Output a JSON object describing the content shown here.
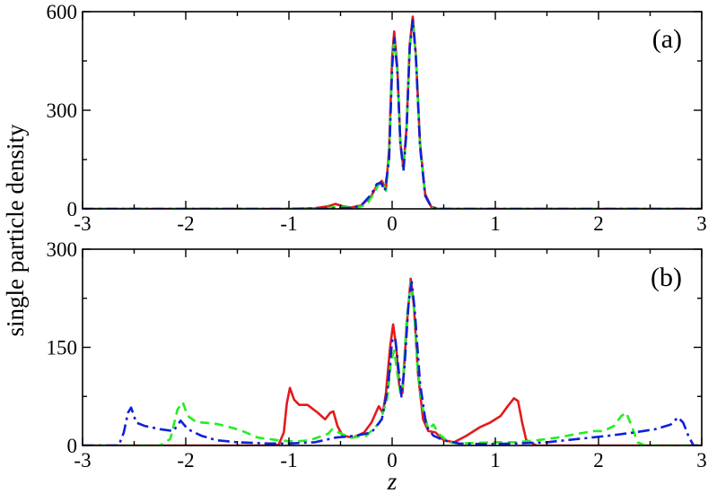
{
  "ylabel": "single particle density",
  "xlabel": "z",
  "colors": {
    "red": "#e31a1c",
    "green": "#22ee22",
    "blue": "#1020d8"
  },
  "chart_data": [
    {
      "type": "line",
      "panel_label": "(a)",
      "xlim": [
        -3,
        3
      ],
      "ylim": [
        0,
        600
      ],
      "xticks": [
        -3,
        -2,
        -1,
        0,
        1,
        2,
        3
      ],
      "yticks": [
        0,
        300,
        600
      ],
      "series": [
        {
          "color": "red",
          "style": "solid",
          "points": [
            [
              -3,
              0
            ],
            [
              -1.0,
              0
            ],
            [
              -0.75,
              2
            ],
            [
              -0.62,
              8
            ],
            [
              -0.55,
              15
            ],
            [
              -0.48,
              8
            ],
            [
              -0.4,
              4
            ],
            [
              -0.3,
              10
            ],
            [
              -0.2,
              40
            ],
            [
              -0.15,
              70
            ],
            [
              -0.1,
              85
            ],
            [
              -0.06,
              60
            ],
            [
              -0.03,
              180
            ],
            [
              0.0,
              460
            ],
            [
              0.02,
              540
            ],
            [
              0.05,
              430
            ],
            [
              0.08,
              200
            ],
            [
              0.11,
              125
            ],
            [
              0.14,
              250
            ],
            [
              0.17,
              500
            ],
            [
              0.2,
              585
            ],
            [
              0.23,
              470
            ],
            [
              0.27,
              200
            ],
            [
              0.32,
              45
            ],
            [
              0.38,
              6
            ],
            [
              0.45,
              0
            ],
            [
              3,
              0
            ]
          ]
        },
        {
          "color": "green",
          "style": "dashed",
          "points": [
            [
              -3,
              0
            ],
            [
              -1.0,
              0
            ],
            [
              -0.7,
              1
            ],
            [
              -0.55,
              5
            ],
            [
              -0.45,
              5
            ],
            [
              -0.35,
              3
            ],
            [
              -0.25,
              12
            ],
            [
              -0.18,
              45
            ],
            [
              -0.13,
              75
            ],
            [
              -0.09,
              80
            ],
            [
              -0.06,
              55
            ],
            [
              -0.03,
              160
            ],
            [
              0.0,
              440
            ],
            [
              0.02,
              520
            ],
            [
              0.05,
              420
            ],
            [
              0.08,
              200
            ],
            [
              0.11,
              120
            ],
            [
              0.14,
              240
            ],
            [
              0.17,
              490
            ],
            [
              0.2,
              575
            ],
            [
              0.23,
              470
            ],
            [
              0.27,
              190
            ],
            [
              0.32,
              40
            ],
            [
              0.38,
              5
            ],
            [
              0.45,
              0
            ],
            [
              3,
              0
            ]
          ]
        },
        {
          "color": "blue",
          "style": "dashdot",
          "points": [
            [
              -3,
              0
            ],
            [
              -1.0,
              0
            ],
            [
              -0.6,
              1
            ],
            [
              -0.4,
              3
            ],
            [
              -0.3,
              10
            ],
            [
              -0.2,
              45
            ],
            [
              -0.15,
              75
            ],
            [
              -0.11,
              80
            ],
            [
              -0.07,
              55
            ],
            [
              -0.03,
              150
            ],
            [
              0.0,
              430
            ],
            [
              0.02,
              520
            ],
            [
              0.05,
              420
            ],
            [
              0.08,
              200
            ],
            [
              0.11,
              115
            ],
            [
              0.14,
              240
            ],
            [
              0.17,
              490
            ],
            [
              0.2,
              575
            ],
            [
              0.23,
              465
            ],
            [
              0.27,
              190
            ],
            [
              0.32,
              40
            ],
            [
              0.38,
              5
            ],
            [
              0.45,
              0
            ],
            [
              3,
              0
            ]
          ]
        }
      ]
    },
    {
      "type": "line",
      "panel_label": "(b)",
      "xlim": [
        -3,
        3
      ],
      "ylim": [
        0,
        300
      ],
      "xticks": [
        -3,
        -2,
        -1,
        0,
        1,
        2,
        3
      ],
      "yticks": [
        0,
        150,
        300
      ],
      "series": [
        {
          "color": "red",
          "style": "solid",
          "points": [
            [
              -3,
              0
            ],
            [
              -1.2,
              0
            ],
            [
              -1.1,
              1
            ],
            [
              -1.05,
              20
            ],
            [
              -1.02,
              65
            ],
            [
              -0.99,
              88
            ],
            [
              -0.95,
              70
            ],
            [
              -0.9,
              62
            ],
            [
              -0.82,
              62
            ],
            [
              -0.72,
              50
            ],
            [
              -0.65,
              40
            ],
            [
              -0.6,
              50
            ],
            [
              -0.57,
              52
            ],
            [
              -0.53,
              30
            ],
            [
              -0.48,
              15
            ],
            [
              -0.38,
              12
            ],
            [
              -0.27,
              20
            ],
            [
              -0.2,
              35
            ],
            [
              -0.13,
              60
            ],
            [
              -0.09,
              50
            ],
            [
              -0.06,
              80
            ],
            [
              -0.02,
              150
            ],
            [
              0.01,
              185
            ],
            [
              0.04,
              150
            ],
            [
              0.07,
              90
            ],
            [
              0.1,
              80
            ],
            [
              0.14,
              180
            ],
            [
              0.18,
              255
            ],
            [
              0.21,
              215
            ],
            [
              0.25,
              110
            ],
            [
              0.3,
              40
            ],
            [
              0.35,
              22
            ],
            [
              0.42,
              20
            ],
            [
              0.5,
              8
            ],
            [
              0.6,
              5
            ],
            [
              0.72,
              15
            ],
            [
              0.85,
              28
            ],
            [
              0.95,
              35
            ],
            [
              1.05,
              45
            ],
            [
              1.12,
              60
            ],
            [
              1.18,
              72
            ],
            [
              1.22,
              68
            ],
            [
              1.26,
              35
            ],
            [
              1.3,
              8
            ],
            [
              1.4,
              0
            ],
            [
              3,
              0
            ]
          ]
        },
        {
          "color": "green",
          "style": "dashed",
          "points": [
            [
              -3,
              0
            ],
            [
              -2.25,
              0
            ],
            [
              -2.15,
              10
            ],
            [
              -2.08,
              55
            ],
            [
              -2.03,
              66
            ],
            [
              -1.98,
              45
            ],
            [
              -1.9,
              36
            ],
            [
              -1.7,
              33
            ],
            [
              -1.55,
              27
            ],
            [
              -1.45,
              22
            ],
            [
              -1.3,
              12
            ],
            [
              -1.1,
              8
            ],
            [
              -0.95,
              6
            ],
            [
              -0.8,
              8
            ],
            [
              -0.62,
              18
            ],
            [
              -0.58,
              25
            ],
            [
              -0.52,
              20
            ],
            [
              -0.4,
              12
            ],
            [
              -0.25,
              15
            ],
            [
              -0.12,
              35
            ],
            [
              -0.05,
              70
            ],
            [
              -0.01,
              130
            ],
            [
              0.02,
              145
            ],
            [
              0.05,
              110
            ],
            [
              0.08,
              80
            ],
            [
              0.1,
              85
            ],
            [
              0.14,
              190
            ],
            [
              0.18,
              250
            ],
            [
              0.21,
              210
            ],
            [
              0.25,
              110
            ],
            [
              0.3,
              55
            ],
            [
              0.35,
              25
            ],
            [
              0.4,
              32
            ],
            [
              0.45,
              18
            ],
            [
              0.55,
              5
            ],
            [
              0.65,
              3
            ],
            [
              0.8,
              4
            ],
            [
              1.0,
              5
            ],
            [
              1.2,
              5
            ],
            [
              1.4,
              8
            ],
            [
              1.6,
              12
            ],
            [
              1.8,
              18
            ],
            [
              1.95,
              22
            ],
            [
              2.05,
              22
            ],
            [
              2.15,
              30
            ],
            [
              2.22,
              45
            ],
            [
              2.27,
              50
            ],
            [
              2.32,
              30
            ],
            [
              2.38,
              5
            ],
            [
              2.45,
              0
            ],
            [
              3,
              0
            ]
          ]
        },
        {
          "color": "blue",
          "style": "dashdot",
          "points": [
            [
              -3,
              0
            ],
            [
              -2.65,
              0
            ],
            [
              -2.6,
              20
            ],
            [
              -2.56,
              50
            ],
            [
              -2.53,
              58
            ],
            [
              -2.48,
              35
            ],
            [
              -2.4,
              30
            ],
            [
              -2.25,
              25
            ],
            [
              -2.12,
              22
            ],
            [
              -2.05,
              38
            ],
            [
              -1.98,
              25
            ],
            [
              -1.85,
              15
            ],
            [
              -1.7,
              8
            ],
            [
              -1.5,
              5
            ],
            [
              -1.2,
              3
            ],
            [
              -1.0,
              3
            ],
            [
              -0.75,
              5
            ],
            [
              -0.55,
              12
            ],
            [
              -0.35,
              15
            ],
            [
              -0.2,
              20
            ],
            [
              -0.1,
              40
            ],
            [
              -0.04,
              90
            ],
            [
              0.0,
              160
            ],
            [
              0.03,
              165
            ],
            [
              0.06,
              120
            ],
            [
              0.09,
              75
            ],
            [
              0.12,
              120
            ],
            [
              0.16,
              220
            ],
            [
              0.19,
              250
            ],
            [
              0.22,
              205
            ],
            [
              0.27,
              95
            ],
            [
              0.33,
              30
            ],
            [
              0.4,
              15
            ],
            [
              0.5,
              8
            ],
            [
              0.65,
              3
            ],
            [
              0.9,
              2
            ],
            [
              1.2,
              3
            ],
            [
              1.5,
              5
            ],
            [
              1.8,
              10
            ],
            [
              2.1,
              15
            ],
            [
              2.35,
              20
            ],
            [
              2.55,
              25
            ],
            [
              2.7,
              32
            ],
            [
              2.77,
              43
            ],
            [
              2.82,
              35
            ],
            [
              2.87,
              15
            ],
            [
              2.92,
              0
            ],
            [
              3,
              0
            ]
          ]
        }
      ]
    }
  ]
}
